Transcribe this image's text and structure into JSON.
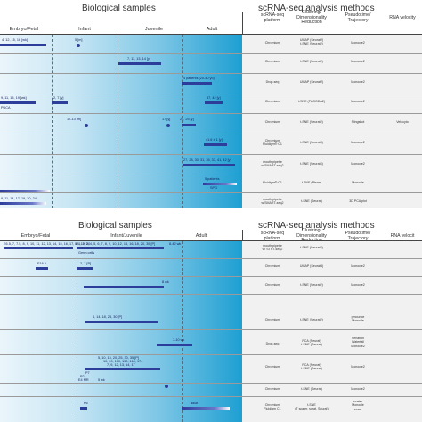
{
  "top": {
    "title": "Biological samples",
    "methods_title": "scRNA-seq analysis methods",
    "stages": [
      "Embryo/Fetal",
      "Infant",
      "Juvenile",
      "Adult"
    ],
    "method_headers": [
      {
        "lines": [
          "scRNA-seq",
          "platform"
        ]
      },
      {
        "lines": [
          "Clustring/",
          "Dimensionality",
          "Reduction"
        ]
      },
      {
        "lines": [
          "Pseudotime/",
          "Trajectory"
        ]
      },
      {
        "lines": [
          "RNA velocity"
        ]
      }
    ],
    "rows": [
      {
        "labels": [
          "4, 12, 15, 16 [wk]",
          "5 [m]"
        ],
        "platform": [
          "Chromium"
        ],
        "clustering": [
          "UMAP (Seurat2)",
          "t-SNE (Seurat2)"
        ],
        "trajectory": [
          "Monocle2"
        ],
        "velocity": []
      },
      {
        "labels": [
          "7, 11, 13, 14 [y]"
        ],
        "platform": [
          "Chromium"
        ],
        "clustering": [
          "t-SNE (Seurat2)"
        ],
        "trajectory": [
          "Monocle2"
        ],
        "velocity": []
      },
      {
        "labels": [
          "4 patients (20-40 yo)"
        ],
        "platform": [
          "Drop-seq"
        ],
        "clustering": [
          "UMAP (Seurat2)"
        ],
        "trajectory": [
          "Monocle2"
        ],
        "velocity": []
      },
      {
        "labels": [
          "9, 11, 15, 19 [wk]",
          "2, 7 [y]",
          "37, 42 [y]",
          "PDCA"
        ],
        "platform": [
          "Chromium"
        ],
        "clustering": [
          "t-SNE (PAGODA2)"
        ],
        "trajectory": [
          "Monocle2"
        ],
        "velocity": []
      },
      {
        "labels": [
          "12-13 [m]",
          "17 [y]",
          "24, 25 [y]",
          "41.6 ± 1 [y]"
        ],
        "platform": [
          "Chromium"
        ],
        "clustering": [
          "t-SNE (Seurat2)"
        ],
        "trajectory": [
          "Slingshot"
        ],
        "velocity": [
          "Velocyto"
        ]
      },
      {
        "labels": [
          "27, 28, 30, 31, 35, 37, 41, 42 [y]"
        ],
        "platform": [
          "Chromium",
          "Fluidigm® C1"
        ],
        "clustering": [
          "t-SNE (Seurat3)"
        ],
        "trajectory": [
          "Monocle2"
        ],
        "velocity": []
      },
      {
        "labels": [
          "5 patients",
          "SPG"
        ],
        "platform": [
          "mouth pipette",
          "w/SMART-seq2"
        ],
        "clustering": [
          "t-SNE (Seurat3)"
        ],
        "trajectory": [
          "Monocle2"
        ],
        "velocity": []
      },
      {
        "labels": [],
        "platform": [
          "Fluidigm® C1"
        ],
        "clustering": [
          "t-SNE (Rtsne)"
        ],
        "trajectory": [
          "Monocle"
        ],
        "velocity": []
      },
      {
        "labels": [
          "8, 11, 14, 17, 19, 20, 24"
        ],
        "platform": [
          "mouth pipette",
          "w/SMART-seq2"
        ],
        "clustering": [
          "t-SNE (Seurat)"
        ],
        "trajectory": [
          "3D PCA plot"
        ],
        "velocity": []
      }
    ]
  },
  "bottom": {
    "title": "Biological samples",
    "methods_title": "scRNA-seq analysis methods",
    "stages": [
      "Embryo/Fetal",
      "Infant/Juvenile",
      "Adult"
    ],
    "method_headers": [
      {
        "lines": [
          "scRNA-seq",
          "platform"
        ]
      },
      {
        "lines": [
          "Clustring/",
          "Dimensionality",
          "Reduction"
        ]
      },
      {
        "lines": [
          "Pseudotime/",
          "Trajectory"
        ]
      },
      {
        "lines": [
          "RNA velocit"
        ]
      }
    ],
    "rows": [
      {
        "labels": [
          "E6.5, 7, 7.5, 8, 9, 10, 11, 12, 13, 14, 15, 16, 17, 18, 19, 20",
          "Germ cells",
          "0, 1, 2, 3, 4, 5, 6, 7, 8, 9, 10, 12, 14, 16, 18, 20, 35 [P]",
          "8-42 wk"
        ],
        "platform": [
          "mouth pipette",
          "w/ STRT-seq2"
        ],
        "clustering": [
          "t-SNE (Seurat2)"
        ],
        "trajectory": [],
        "velocity": []
      },
      {
        "labels": [
          "E16.5",
          "2, 7 [P]"
        ],
        "platform": [
          "Chromium"
        ],
        "clustering": [
          "UMAP (Seurat3)"
        ],
        "trajectory": [
          "Monocle2"
        ],
        "velocity": []
      },
      {
        "labels": [
          "8 wk"
        ],
        "platform": [
          "Chromium"
        ],
        "clustering": [
          "t-SNE (Seurat2)"
        ],
        "trajectory": [
          "Monocle2"
        ],
        "velocity": []
      },
      {
        "labels": [
          "6, 14, 18, 25, 30 [P]"
        ],
        "platform": [
          "Chromium"
        ],
        "clustering": [
          "t-SNE (Seurat2)"
        ],
        "trajectory": [
          "pmounce",
          "Monocle"
        ],
        "velocity": []
      },
      {
        "labels": [
          "7-10 wk"
        ],
        "platform": [
          "Drop-seq"
        ],
        "clustering": [
          "PCA (Seurat)",
          "t-SNE (Seurat)"
        ],
        "trajectory": [
          "Seriation",
          "Waterfall",
          "Monocle2"
        ],
        "velocity": []
      },
      {
        "labels": [
          "5, 10, 15, 20, 25, 30, 35 [P]",
          "10, 20, 100, 150, 160, 174",
          "7, 9, 12, 13, 14, 17",
          "P7",
          "E4 MR",
          "P2",
          "5 wk"
        ],
        "platform": [
          "Chromium"
        ],
        "clustering": [
          "PCA (Seurat)",
          "t-SNE (Seurat)"
        ],
        "trajectory": [
          "Monocle2"
        ],
        "velocity": []
      },
      {
        "labels": [
          "P6",
          "adult"
        ],
        "platform": [
          "Chromium",
          "Fluidigm C1"
        ],
        "clustering": [
          "t-SNE",
          "(T scater, scrat, Seurat)"
        ],
        "trajectory": [
          "scater",
          "Monocle",
          "scrat"
        ],
        "velocity": []
      },
      {
        "labels": [],
        "platform": [
          "Chromium"
        ],
        "clustering": [
          "t-SNE (Seurat)"
        ],
        "trajectory": [
          "Monocle2"
        ],
        "velocity": []
      }
    ]
  },
  "colors": {
    "bar": "#2d3d9a",
    "gradient_end": "#1d9fd2",
    "methods_bg": "#f1f1f1"
  }
}
